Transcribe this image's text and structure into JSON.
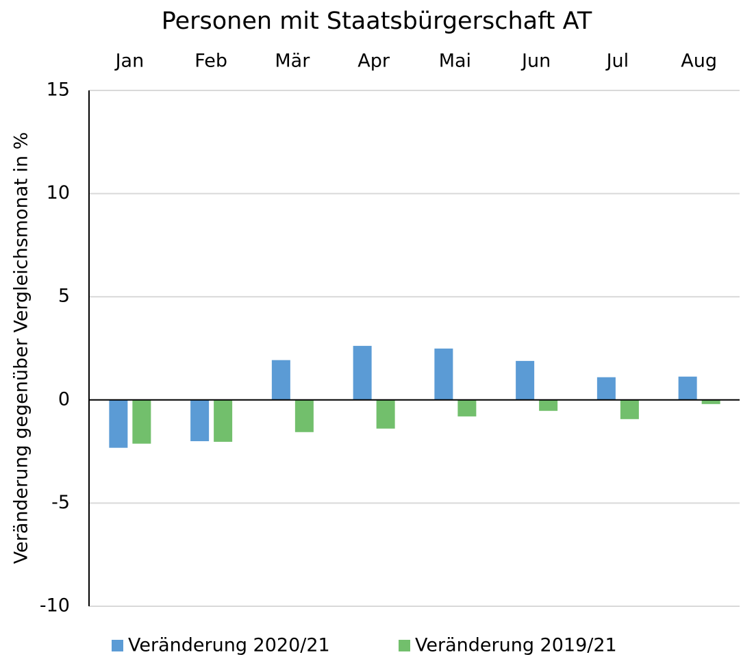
{
  "chart_data": {
    "type": "bar",
    "title": "Personen mit Staatsbürgerschaft AT",
    "y_label": "Veränderung gegenüber Vergleichsmonat in %",
    "categories": [
      "Jan",
      "Feb",
      "Mär",
      "Apr",
      "Mai",
      "Jun",
      "Jul",
      "Aug"
    ],
    "series": [
      {
        "name": "Veränderung 2020/21",
        "color": "#5b9bd5",
        "values": [
          -2.32,
          -2.0,
          1.93,
          2.62,
          2.49,
          1.89,
          1.1,
          1.13
        ]
      },
      {
        "name": "Veränderung 2019/21",
        "color": "#72bf6c",
        "values": [
          -2.12,
          -2.03,
          -1.56,
          -1.39,
          -0.8,
          -0.53,
          -0.93,
          -0.2
        ]
      }
    ],
    "ylim": [
      -10,
      15
    ],
    "yticks": [
      -10,
      -5,
      0,
      5,
      10,
      15
    ],
    "grid": true,
    "legend": "bottom"
  }
}
